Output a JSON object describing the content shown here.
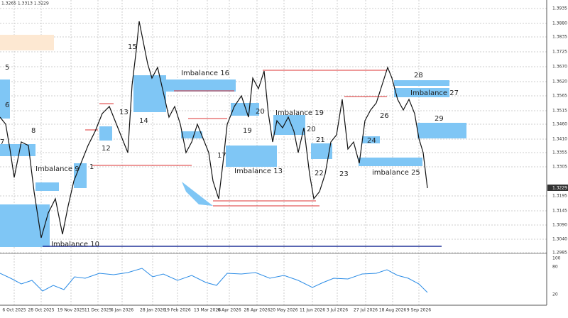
{
  "header": {
    "ohlc": "1.3265 1.3313 1.3229"
  },
  "price_axis": {
    "labels": [
      "1.3935",
      "1.3880",
      "1.3835",
      "1.3725",
      "1.3670",
      "1.3620",
      "1.3565",
      "1.3515",
      "1.3460",
      "1.3410",
      "1.3355",
      "1.3305",
      "1.3195",
      "1.3145",
      "1.3090",
      "1.3040",
      "1.2985"
    ],
    "current": "1.3229"
  },
  "time_axis": {
    "labels": [
      "6 Oct 2025",
      "28 Oct 2025",
      "19 Nov 2025",
      "11 Dec 2025",
      "6 Jan 2026",
      "28 Jan 2026",
      "19 Feb 2026",
      "13 Mar 2026",
      "6 Apr 2026",
      "28 Apr 2026",
      "20 May 2026",
      "11 Jun 2026",
      "3 Jul 2026",
      "27 Jul 2026",
      "18 Aug 2026",
      "9 Sep 2026"
    ]
  },
  "indicator_axis": {
    "labels": [
      "100",
      "80",
      "20"
    ]
  },
  "annotations": [
    "Imbalance 16",
    "15",
    "5",
    "6",
    "8",
    "7",
    "Imbalance 9",
    "1",
    "12",
    "13",
    "14",
    "20",
    "19",
    "Imbalance 19",
    "17",
    "Imbalance 13",
    "21",
    "20",
    "22",
    "23",
    "24",
    "imbalance 25",
    "26",
    "28",
    "Imbalance 27",
    "29",
    "Imbalance 10"
  ]
}
